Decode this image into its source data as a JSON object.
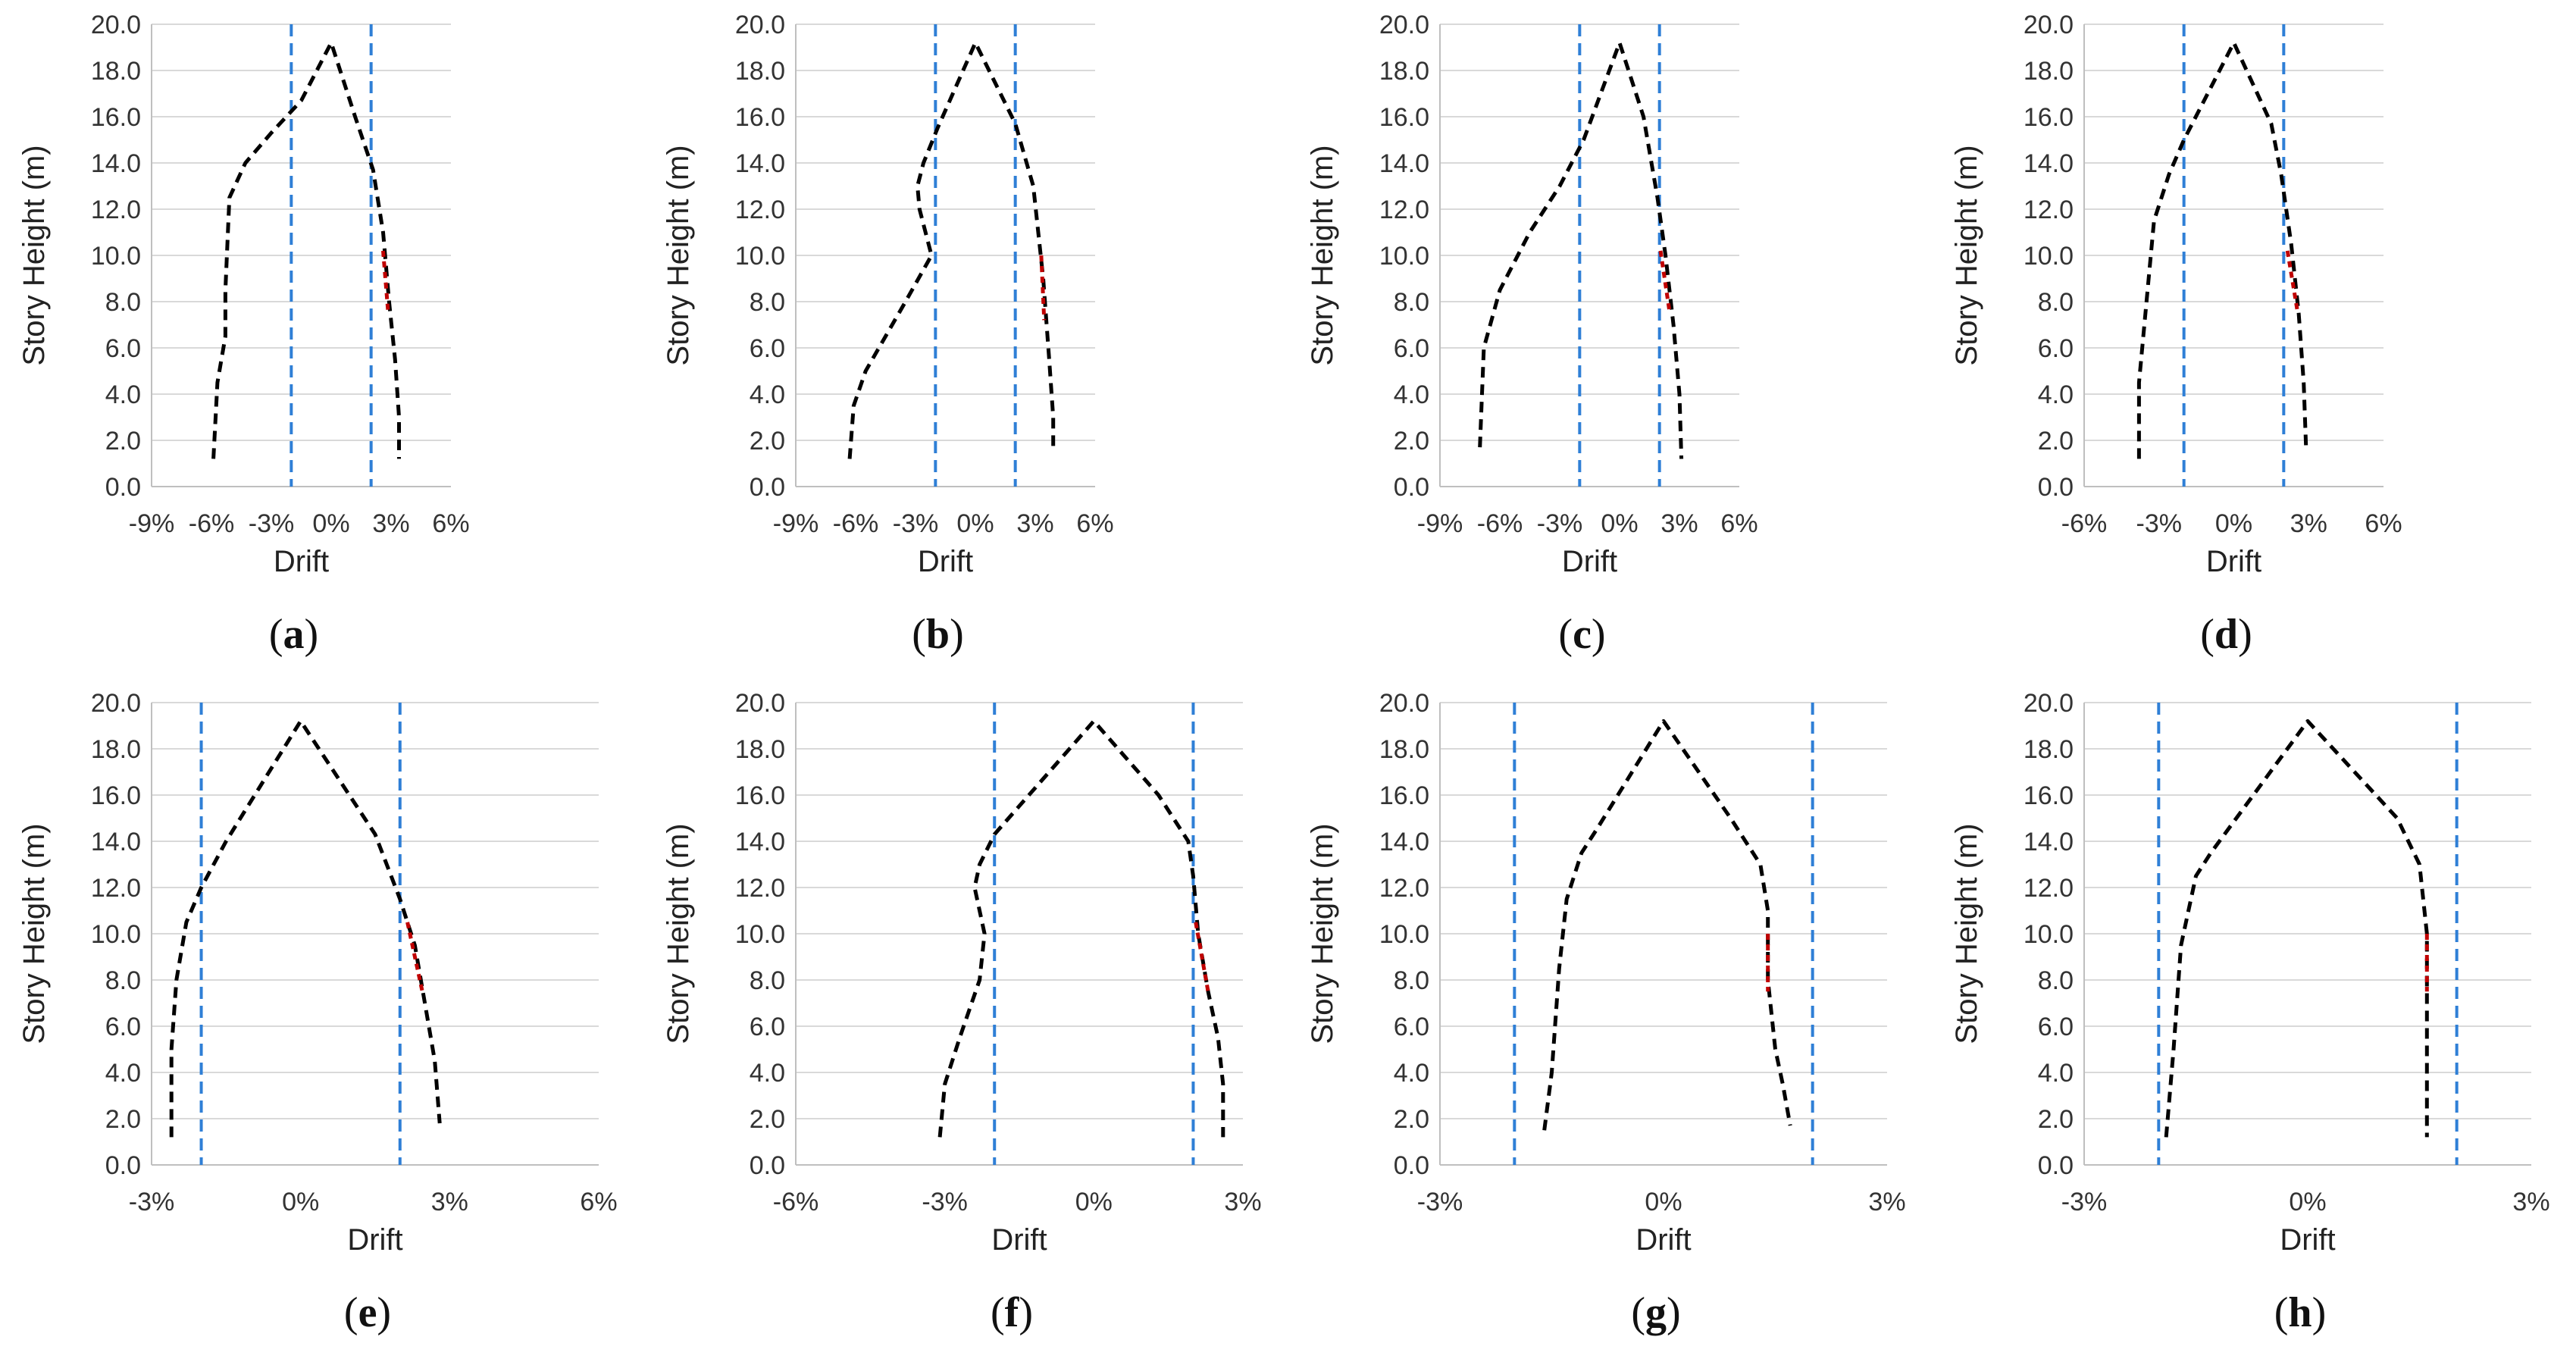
{
  "figure": {
    "y_axis_label": "Story Height (m)",
    "x_axis_label": "Drift",
    "y_ticks": [
      "0.0",
      "2.0",
      "4.0",
      "6.0",
      "8.0",
      "10.0",
      "12.0",
      "14.0",
      "16.0",
      "18.0",
      "20.0"
    ]
  },
  "colors": {
    "profile": "#000000",
    "limit_line": "#2f7fd6",
    "highlight": "#c00000",
    "gridline": "#d9d9d9",
    "axis": "#bfbfbf"
  },
  "chart_data": [
    {
      "id": "a",
      "panel_label": "a",
      "type": "line",
      "title": "",
      "xlabel": "Drift",
      "ylabel": "Story Height (m)",
      "xlim": [
        -9,
        6
      ],
      "ylim": [
        0,
        20
      ],
      "grid": "horizontal",
      "x_ticks": [
        "-9%",
        "-6%",
        "-3%",
        "0%",
        "3%",
        "6%"
      ],
      "x_tick_values": [
        -9,
        -6,
        -3,
        0,
        3,
        6
      ],
      "limit_lines": [
        -2,
        2
      ],
      "series": [
        {
          "name": "drift profile",
          "x": [
            -5.9,
            -5.7,
            -5.3,
            -5.3,
            -5.1,
            -4.3,
            -3.0,
            -1.5,
            0,
            1.2,
            2.1,
            2.6,
            2.9,
            3.2,
            3.4,
            3.4
          ],
          "y": [
            1.2,
            4.5,
            6.5,
            8.5,
            12.5,
            14.0,
            15.3,
            16.7,
            19.2,
            16.0,
            13.7,
            11.0,
            8.0,
            5.5,
            3.0,
            1.2
          ]
        }
      ],
      "highlight": [
        {
          "x": [
            2.6,
            2.85
          ],
          "y": [
            10.2,
            7.6
          ]
        }
      ]
    },
    {
      "id": "b",
      "panel_label": "b",
      "type": "line",
      "title": "",
      "xlabel": "Drift",
      "ylabel": "Story Height (m)",
      "xlim": [
        -9,
        6
      ],
      "ylim": [
        0,
        20
      ],
      "grid": "horizontal",
      "x_ticks": [
        "-9%",
        "-6%",
        "-3%",
        "0%",
        "3%",
        "6%"
      ],
      "x_tick_values": [
        -9,
        -6,
        -3,
        0,
        3,
        6
      ],
      "limit_lines": [
        -2,
        2
      ],
      "series": [
        {
          "name": "drift profile",
          "x": [
            -6.3,
            -6.1,
            -5.5,
            -3.5,
            -2.2,
            -2.8,
            -2.9,
            -2.6,
            -1.9,
            0,
            2.0,
            2.9,
            3.4,
            3.7,
            3.9,
            3.9
          ],
          "y": [
            1.2,
            3.5,
            5.0,
            8.0,
            10.0,
            12.0,
            13.0,
            14.0,
            15.5,
            19.2,
            15.7,
            13.0,
            9.0,
            5.5,
            3.0,
            1.5
          ]
        }
      ],
      "highlight": [
        {
          "x": [
            3.3,
            3.45
          ],
          "y": [
            10.0,
            7.2
          ]
        }
      ]
    },
    {
      "id": "c",
      "panel_label": "c",
      "type": "line",
      "title": "",
      "xlabel": "Drift",
      "ylabel": "Story Height (m)",
      "xlim": [
        -9,
        6
      ],
      "ylim": [
        0,
        20
      ],
      "grid": "horizontal",
      "x_ticks": [
        "-9%",
        "-6%",
        "-3%",
        "0%",
        "3%",
        "6%"
      ],
      "x_tick_values": [
        -9,
        -6,
        -3,
        0,
        3,
        6
      ],
      "limit_lines": [
        -2,
        2
      ],
      "series": [
        {
          "name": "drift profile",
          "x": [
            -7.0,
            -6.8,
            -6.0,
            -4.5,
            -3.0,
            -1.8,
            0,
            1.2,
            1.9,
            2.3,
            2.7,
            3.0,
            3.1
          ],
          "y": [
            1.7,
            6.0,
            8.5,
            11.0,
            13.0,
            15.0,
            19.2,
            16.0,
            12.5,
            10.0,
            7.0,
            4.0,
            1.2
          ]
        }
      ],
      "highlight": [
        {
          "x": [
            2.05,
            2.5
          ],
          "y": [
            10.2,
            7.6
          ]
        }
      ]
    },
    {
      "id": "d",
      "panel_label": "d",
      "type": "line",
      "title": "",
      "xlabel": "Drift",
      "ylabel": "Story Height (m)",
      "xlim": [
        -6,
        6
      ],
      "ylim": [
        0,
        20
      ],
      "grid": "horizontal",
      "x_ticks": [
        "-6%",
        "-3%",
        "0%",
        "3%",
        "6%"
      ],
      "x_tick_values": [
        -6,
        -3,
        0,
        3,
        6
      ],
      "limit_lines": [
        -2,
        2
      ],
      "series": [
        {
          "name": "drift profile",
          "x": [
            -3.8,
            -3.8,
            -3.5,
            -3.2,
            -2.6,
            -2.0,
            0,
            1.5,
            1.9,
            2.3,
            2.6,
            2.8,
            2.9
          ],
          "y": [
            1.2,
            4.5,
            8.0,
            11.5,
            13.5,
            15.0,
            19.2,
            15.7,
            13.5,
            10.5,
            7.5,
            4.5,
            1.5
          ]
        }
      ],
      "highlight": [
        {
          "x": [
            2.15,
            2.55
          ],
          "y": [
            10.2,
            7.6
          ]
        }
      ]
    },
    {
      "id": "e",
      "panel_label": "e",
      "type": "line",
      "title": "",
      "xlabel": "Drift",
      "ylabel": "Story Height (m)",
      "xlim": [
        -3,
        6
      ],
      "ylim": [
        0,
        20
      ],
      "grid": "horizontal",
      "x_ticks": [
        "-3%",
        "0%",
        "3%",
        "6%"
      ],
      "x_tick_values": [
        -3,
        0,
        3,
        6
      ],
      "limit_lines": [
        -2,
        2
      ],
      "series": [
        {
          "name": "drift profile",
          "x": [
            -2.6,
            -2.6,
            -2.5,
            -2.3,
            -2.0,
            -1.5,
            0,
            1.5,
            2.0,
            2.3,
            2.5,
            2.7,
            2.8
          ],
          "y": [
            1.2,
            5.0,
            8.0,
            10.5,
            12.0,
            14.0,
            19.2,
            14.3,
            11.5,
            9.5,
            7.0,
            4.5,
            1.8
          ]
        }
      ],
      "highlight": [
        {
          "x": [
            2.15,
            2.45
          ],
          "y": [
            10.5,
            7.5
          ]
        }
      ]
    },
    {
      "id": "f",
      "panel_label": "f",
      "type": "line",
      "title": "",
      "xlabel": "Drift",
      "ylabel": "Story Height (m)",
      "xlim": [
        -6,
        3
      ],
      "ylim": [
        0,
        20
      ],
      "grid": "horizontal",
      "x_ticks": [
        "-6%",
        "-3%",
        "0%",
        "3%"
      ],
      "x_tick_values": [
        -6,
        -3,
        0,
        3
      ],
      "limit_lines": [
        -2,
        2
      ],
      "series": [
        {
          "name": "drift profile",
          "x": [
            -3.1,
            -3.0,
            -2.7,
            -2.3,
            -2.2,
            -2.4,
            -2.3,
            -2.0,
            0,
            1.3,
            1.9,
            2.0,
            2.1,
            2.3,
            2.5,
            2.6,
            2.6
          ],
          "y": [
            1.2,
            3.5,
            5.5,
            8.0,
            10.0,
            12.0,
            13.0,
            14.3,
            19.2,
            16.0,
            14.0,
            12.5,
            10.0,
            7.5,
            5.5,
            3.5,
            1.2
          ]
        }
      ],
      "highlight": [
        {
          "x": [
            2.05,
            2.3
          ],
          "y": [
            10.5,
            7.5
          ]
        }
      ]
    },
    {
      "id": "g",
      "panel_label": "g",
      "type": "line",
      "title": "",
      "xlabel": "Drift",
      "ylabel": "Story Height (m)",
      "xlim": [
        -3,
        3
      ],
      "ylim": [
        0,
        20
      ],
      "grid": "horizontal",
      "x_ticks": [
        "-3%",
        "0%",
        "3%"
      ],
      "x_tick_values": [
        -3,
        0,
        3
      ],
      "limit_lines": [
        -2,
        2
      ],
      "series": [
        {
          "name": "drift profile",
          "x": [
            -1.6,
            -1.5,
            -1.4,
            -1.3,
            -1.1,
            -0.9,
            0,
            0.9,
            1.3,
            1.4,
            1.4,
            1.5,
            1.6,
            1.7
          ],
          "y": [
            1.5,
            4.0,
            8.5,
            11.5,
            13.5,
            14.5,
            19.2,
            15.0,
            13.0,
            11.0,
            8.0,
            5.0,
            3.5,
            1.7
          ]
        }
      ],
      "highlight": [
        {
          "x": [
            1.4,
            1.4
          ],
          "y": [
            10.0,
            7.5
          ]
        }
      ]
    },
    {
      "id": "h",
      "panel_label": "h",
      "type": "line",
      "title": "",
      "xlabel": "Drift",
      "ylabel": "Story Height (m)",
      "xlim": [
        -3,
        3
      ],
      "ylim": [
        0,
        20
      ],
      "grid": "horizontal",
      "x_ticks": [
        "-3%",
        "0%",
        "3%"
      ],
      "x_tick_values": [
        -3,
        0,
        3
      ],
      "limit_lines": [
        -2,
        2
      ],
      "series": [
        {
          "name": "drift profile",
          "x": [
            -1.9,
            -1.8,
            -1.7,
            -1.5,
            -1.3,
            0,
            1.2,
            1.5,
            1.6,
            1.6,
            1.6,
            1.6
          ],
          "y": [
            1.2,
            5.0,
            9.5,
            12.5,
            13.5,
            19.2,
            15.0,
            13.0,
            10.0,
            7.0,
            4.0,
            1.2
          ]
        }
      ],
      "highlight": [
        {
          "x": [
            1.6,
            1.6
          ],
          "y": [
            10.0,
            7.5
          ]
        }
      ]
    }
  ]
}
